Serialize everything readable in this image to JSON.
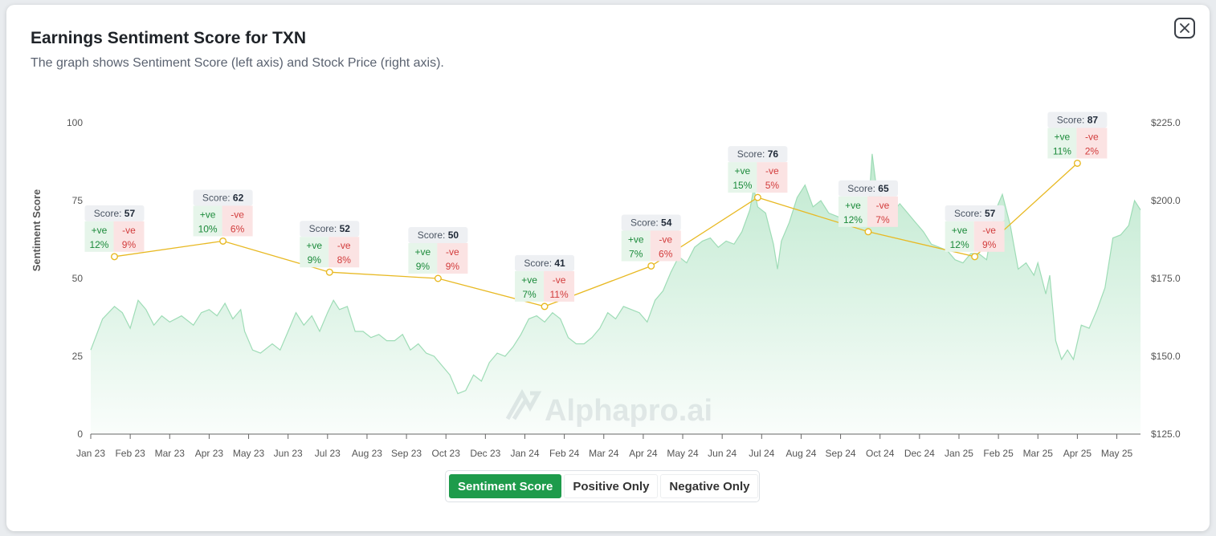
{
  "modal": {
    "title": "Earnings Sentiment Score for TXN",
    "subtitle": "The graph shows Sentiment Score (left axis) and Stock Price (right axis).",
    "close_icon": "close-icon"
  },
  "toggle": {
    "buttons": [
      {
        "label": "Sentiment Score",
        "active": true
      },
      {
        "label": "Positive Only",
        "active": false
      },
      {
        "label": "Negative Only",
        "active": false
      }
    ]
  },
  "watermark": {
    "text": "Alphapro.ai"
  },
  "colors": {
    "score_line": "#e8b923",
    "price_area": "#bfe9cf",
    "price_line": "#9edcb6",
    "active_button": "#1e9b4b",
    "positive": "#1b8a3a",
    "negative": "#d23c3c"
  },
  "chart_data": {
    "type": "line",
    "ylabel": "Sentiment Score",
    "y_left": {
      "ticks": [
        "0",
        "25",
        "50",
        "75",
        "100"
      ],
      "range": [
        0,
        100
      ]
    },
    "y_right": {
      "ticks": [
        "$125.0",
        "$150.0",
        "$175.0",
        "$200.0",
        "$225.0"
      ],
      "range": [
        125,
        225
      ]
    },
    "x_labels": [
      "Jan 23",
      "Feb 23",
      "Mar 23",
      "Apr 23",
      "May 23",
      "Jun 23",
      "Jul 23",
      "Aug 23",
      "Sep 23",
      "Oct 23",
      "Dec 23",
      "Jan 24",
      "Feb 24",
      "Mar 24",
      "Apr 24",
      "May 24",
      "Jun 24",
      "Jul 24",
      "Aug 24",
      "Sep 24",
      "Oct 24",
      "Dec 24",
      "Jan 25",
      "Feb 25",
      "Mar 25",
      "Apr 25",
      "May 25"
    ],
    "x_range": [
      0,
      26.6
    ],
    "score_series": [
      {
        "x": 0.6,
        "score": 57,
        "pos": "12%",
        "neg": "9%"
      },
      {
        "x": 3.35,
        "score": 62,
        "pos": "10%",
        "neg": "6%"
      },
      {
        "x": 6.05,
        "score": 52,
        "pos": "9%",
        "neg": "8%"
      },
      {
        "x": 8.8,
        "score": 50,
        "pos": "9%",
        "neg": "9%"
      },
      {
        "x": 11.5,
        "score": 41,
        "pos": "7%",
        "neg": "11%"
      },
      {
        "x": 14.2,
        "score": 54,
        "pos": "7%",
        "neg": "6%"
      },
      {
        "x": 16.9,
        "score": 76,
        "pos": "15%",
        "neg": "5%"
      },
      {
        "x": 19.7,
        "score": 65,
        "pos": "12%",
        "neg": "7%"
      },
      {
        "x": 22.4,
        "score": 57,
        "pos": "12%",
        "neg": "9%"
      },
      {
        "x": 25.0,
        "score": 87,
        "pos": "11%",
        "neg": "2%"
      }
    ],
    "price_series": [
      [
        0,
        152
      ],
      [
        0.3,
        162
      ],
      [
        0.6,
        166
      ],
      [
        0.8,
        164
      ],
      [
        1.0,
        159
      ],
      [
        1.2,
        168
      ],
      [
        1.4,
        165
      ],
      [
        1.6,
        160
      ],
      [
        1.8,
        163
      ],
      [
        2.0,
        161
      ],
      [
        2.3,
        163
      ],
      [
        2.6,
        160
      ],
      [
        2.8,
        164
      ],
      [
        3.0,
        165
      ],
      [
        3.2,
        163
      ],
      [
        3.4,
        167
      ],
      [
        3.6,
        162
      ],
      [
        3.8,
        165
      ],
      [
        3.9,
        158
      ],
      [
        4.1,
        152
      ],
      [
        4.3,
        151
      ],
      [
        4.6,
        154
      ],
      [
        4.8,
        152
      ],
      [
        5.0,
        158
      ],
      [
        5.2,
        164
      ],
      [
        5.4,
        160
      ],
      [
        5.6,
        163
      ],
      [
        5.8,
        158
      ],
      [
        6.0,
        164
      ],
      [
        6.15,
        168
      ],
      [
        6.3,
        165
      ],
      [
        6.5,
        166
      ],
      [
        6.7,
        158
      ],
      [
        6.9,
        158
      ],
      [
        7.1,
        156
      ],
      [
        7.3,
        157
      ],
      [
        7.5,
        155
      ],
      [
        7.7,
        155
      ],
      [
        7.9,
        157
      ],
      [
        8.1,
        152
      ],
      [
        8.3,
        154
      ],
      [
        8.5,
        151
      ],
      [
        8.7,
        150
      ],
      [
        8.9,
        147
      ],
      [
        9.1,
        144
      ],
      [
        9.3,
        138
      ],
      [
        9.5,
        139
      ],
      [
        9.7,
        144
      ],
      [
        9.9,
        142
      ],
      [
        10.1,
        148
      ],
      [
        10.3,
        151
      ],
      [
        10.5,
        150
      ],
      [
        10.7,
        153
      ],
      [
        10.9,
        157
      ],
      [
        11.1,
        162
      ],
      [
        11.3,
        163
      ],
      [
        11.5,
        161
      ],
      [
        11.7,
        164
      ],
      [
        11.9,
        162
      ],
      [
        12.1,
        156
      ],
      [
        12.3,
        154
      ],
      [
        12.5,
        154
      ],
      [
        12.7,
        156
      ],
      [
        12.9,
        159
      ],
      [
        13.1,
        164
      ],
      [
        13.3,
        162
      ],
      [
        13.5,
        166
      ],
      [
        13.7,
        165
      ],
      [
        13.9,
        164
      ],
      [
        14.1,
        161
      ],
      [
        14.3,
        168
      ],
      [
        14.5,
        171
      ],
      [
        14.7,
        177
      ],
      [
        14.9,
        182
      ],
      [
        15.1,
        180
      ],
      [
        15.3,
        185
      ],
      [
        15.5,
        187
      ],
      [
        15.7,
        188
      ],
      [
        15.9,
        185
      ],
      [
        16.1,
        187
      ],
      [
        16.3,
        186
      ],
      [
        16.5,
        190
      ],
      [
        16.7,
        197
      ],
      [
        16.8,
        204
      ],
      [
        16.9,
        198
      ],
      [
        17.1,
        196
      ],
      [
        17.3,
        186
      ],
      [
        17.4,
        178
      ],
      [
        17.5,
        187
      ],
      [
        17.7,
        193
      ],
      [
        17.9,
        201
      ],
      [
        18.1,
        205
      ],
      [
        18.3,
        198
      ],
      [
        18.5,
        200
      ],
      [
        18.7,
        196
      ],
      [
        18.9,
        195
      ],
      [
        19.1,
        194
      ],
      [
        19.3,
        192
      ],
      [
        19.5,
        195
      ],
      [
        19.7,
        196
      ],
      [
        19.8,
        215
      ],
      [
        19.9,
        205
      ],
      [
        20.1,
        199
      ],
      [
        20.3,
        196
      ],
      [
        20.5,
        199
      ],
      [
        20.7,
        196
      ],
      [
        20.9,
        193
      ],
      [
        21.1,
        190
      ],
      [
        21.3,
        186
      ],
      [
        21.5,
        185
      ],
      [
        21.7,
        184
      ],
      [
        21.9,
        181
      ],
      [
        22.1,
        180
      ],
      [
        22.3,
        183
      ],
      [
        22.5,
        183
      ],
      [
        22.7,
        181
      ],
      [
        22.9,
        196
      ],
      [
        23.1,
        202
      ],
      [
        23.3,
        192
      ],
      [
        23.5,
        178
      ],
      [
        23.7,
        180
      ],
      [
        23.9,
        176
      ],
      [
        24.0,
        180
      ],
      [
        24.2,
        170
      ],
      [
        24.3,
        176
      ],
      [
        24.45,
        155
      ],
      [
        24.6,
        149
      ],
      [
        24.75,
        152
      ],
      [
        24.9,
        149
      ],
      [
        25.1,
        160
      ],
      [
        25.3,
        159
      ],
      [
        25.5,
        165
      ],
      [
        25.7,
        172
      ],
      [
        25.9,
        188
      ],
      [
        26.1,
        189
      ],
      [
        26.3,
        192
      ],
      [
        26.45,
        200
      ],
      [
        26.6,
        197
      ]
    ]
  }
}
